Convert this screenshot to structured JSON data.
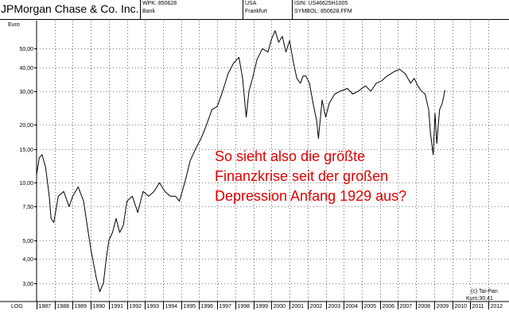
{
  "header": {
    "company": "JPMorgan Chase & Co. Inc.",
    "wpk": "WPK: 850628",
    "sector": "Bank",
    "country": "USA",
    "exchange": "Frankfurt",
    "isin": "ISIN: US46625H1005",
    "symbol": "SYMBOL: 850628.FFM"
  },
  "annotation": {
    "line1": "So sieht also die größte",
    "line2": "Finanzkrise seit der großen",
    "line3": "Depression Anfang 1929 aus?"
  },
  "credit": "(c) Tai-Pan",
  "last_price": "Kurs:30,41",
  "chart_data": {
    "type": "line",
    "title": "JPMorgan Chase & Co. Inc.",
    "ylabel": "Euro",
    "xlabel": "",
    "scale_label": "LOG",
    "y_scale": "log",
    "ylim": [
      2.4,
      70
    ],
    "xlim": [
      1987.0,
      2013.0
    ],
    "grid": true,
    "yticks": [
      3,
      4,
      5,
      7.5,
      10,
      15,
      20,
      30,
      40,
      50
    ],
    "ytick_labels": [
      "3,00",
      "4,00",
      "5,00",
      "7,50",
      "10,00",
      "15,00",
      "20,00",
      "30,00",
      "40,00",
      "50,00"
    ],
    "xticks": [
      1987,
      1988,
      1989,
      1990,
      1991,
      1992,
      1993,
      1994,
      1995,
      1996,
      1997,
      1998,
      1999,
      2000,
      2001,
      2002,
      2003,
      2004,
      2005,
      2006,
      2007,
      2008,
      2009,
      2010,
      2011,
      2012
    ],
    "xtick_labels": [
      "1987",
      "1988",
      "1989",
      "1990",
      "1991",
      "1992",
      "1993",
      "1994",
      "1995",
      "1996",
      "1997",
      "1998",
      "1999",
      "2000",
      "2001",
      "2002",
      "2003",
      "2004",
      "2005",
      "2006",
      "2007",
      "2008",
      "2009",
      "2010",
      "2011",
      "2012"
    ],
    "series": [
      {
        "color": "#000000",
        "x": [
          1987.0,
          1987.15,
          1987.3,
          1987.5,
          1987.7,
          1987.8,
          1987.95,
          1988.2,
          1988.5,
          1988.8,
          1989.0,
          1989.3,
          1989.6,
          1989.8,
          1990.0,
          1990.3,
          1990.5,
          1990.7,
          1990.85,
          1991.0,
          1991.2,
          1991.4,
          1991.6,
          1991.8,
          1992.0,
          1992.3,
          1992.6,
          1992.9,
          1993.2,
          1993.5,
          1993.8,
          1994.1,
          1994.4,
          1994.7,
          1994.9,
          1995.2,
          1995.5,
          1995.8,
          1996.1,
          1996.4,
          1996.7,
          1997.0,
          1997.3,
          1997.6,
          1997.9,
          1998.2,
          1998.4,
          1998.6,
          1998.75,
          1998.95,
          1999.2,
          1999.5,
          1999.8,
          2000.0,
          2000.2,
          2000.4,
          2000.6,
          2000.8,
          2001.0,
          2001.2,
          2001.4,
          2001.6,
          2001.75,
          2001.9,
          2002.1,
          2002.3,
          2002.5,
          2002.6,
          2002.8,
          2003.0,
          2003.2,
          2003.5,
          2003.8,
          2004.2,
          2004.5,
          2004.8,
          2005.2,
          2005.5,
          2005.8,
          2006.1,
          2006.4,
          2006.8,
          2007.1,
          2007.4,
          2007.7,
          2007.9,
          2008.1,
          2008.3,
          2008.5,
          2008.7,
          2008.8,
          2008.95,
          2009.05,
          2009.15,
          2009.3,
          2009.45,
          2009.6
        ],
        "y": [
          11.0,
          13.5,
          14.0,
          12.0,
          8.5,
          6.5,
          6.2,
          8.5,
          9.0,
          7.5,
          8.5,
          9.5,
          8.0,
          6.0,
          4.5,
          3.2,
          2.7,
          3.0,
          4.0,
          5.0,
          5.5,
          6.5,
          5.5,
          6.0,
          8.0,
          8.5,
          7.0,
          9.0,
          8.5,
          9.0,
          10.0,
          9.0,
          8.5,
          8.5,
          8.0,
          10.0,
          13.0,
          15.0,
          17.0,
          20.0,
          24.0,
          25.0,
          30.0,
          37.0,
          42.0,
          45.0,
          35.0,
          22.0,
          30.0,
          35.0,
          44.0,
          50.0,
          48.0,
          56.0,
          62.0,
          54.0,
          58.0,
          48.0,
          55.0,
          43.0,
          35.0,
          33.0,
          36.0,
          36.0,
          33.0,
          26.0,
          21.0,
          17.0,
          27.0,
          22.0,
          26.0,
          29.0,
          30.0,
          31.0,
          29.0,
          30.0,
          32.0,
          30.0,
          33.0,
          34.0,
          36.0,
          38.0,
          39.0,
          37.0,
          33.0,
          35.0,
          32.0,
          30.0,
          29.0,
          24.0,
          18.0,
          14.0,
          23.0,
          16.0,
          24.0,
          26.0,
          30.4
        ]
      }
    ]
  }
}
